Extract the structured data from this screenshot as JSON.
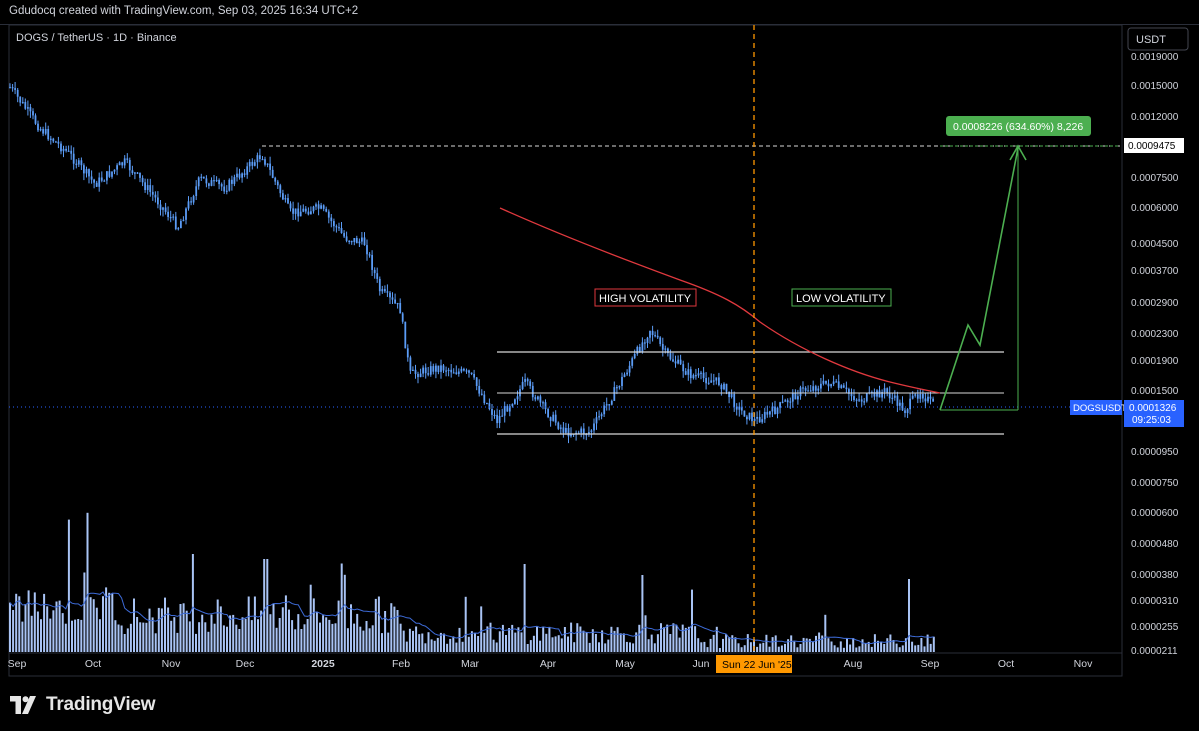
{
  "header": {
    "credit": "Gdudocq created with TradingView.com, Sep 03, 2025 16:34 UTC+2"
  },
  "symbol_line": "DOGS / TetherUS · 1D · Binance",
  "currency_button": "USDT",
  "brand": "TradingView",
  "colors": {
    "background": "#000000",
    "candle": "#5b9cf6",
    "volume": "#a9c4f5",
    "ma_line": "#e0393e",
    "volume_ma": "#3d6bd8",
    "projection": "#4caf50",
    "date_marker": "#ff9800"
  },
  "annotations": {
    "high_volatility": "HIGH VOLATILITY",
    "low_volatility": "LOW VOLATILITY",
    "measure_label": "0.0008226 (634.60%) 8,226",
    "date_marker_label": "Sun 22 Jun '25"
  },
  "price_tags": {
    "target": "0.0009475",
    "symbol": "DOGSUSDT",
    "last_price": "0.0001326",
    "countdown": "09:25:03"
  },
  "chart_data": {
    "type": "candlestick",
    "scale": "log",
    "title": "DOGS / TetherUS · 1D · Binance",
    "y_ticks": [
      "0.0019000",
      "0.0015000",
      "0.0012000",
      "0.0007500",
      "0.0006000",
      "0.0004500",
      "0.0003700",
      "0.0002900",
      "0.0002300",
      "0.0001900",
      "0.0001500",
      "0.0000950",
      "0.0000750",
      "0.0000600",
      "0.0000480",
      "0.0000380",
      "0.0000310",
      "0.0000255",
      "0.0000211"
    ],
    "x_ticks": [
      "Sep",
      "Oct",
      "Nov",
      "Dec",
      "2025",
      "Feb",
      "Mar",
      "Apr",
      "May",
      "Jun",
      "Aug",
      "Sep",
      "Oct",
      "Nov"
    ],
    "series": [
      {
        "x": [
          "2024-09",
          "2024-10",
          "2024-11",
          "2024-12",
          "2025-01",
          "2025-02",
          "2025-03",
          "2025-04",
          "2025-05",
          "2025-06",
          "2025-07",
          "2025-08",
          "2025-09"
        ],
        "close": [
          0.00125,
          0.00072,
          0.00055,
          0.0008,
          0.00052,
          0.0002,
          0.00016,
          0.00013,
          0.00022,
          0.00013,
          0.00016,
          0.00015,
          0.0001326
        ]
      }
    ],
    "range_box": {
      "top": 0.0002,
      "mid": 0.00015,
      "bottom": 0.000115
    },
    "target_price": 0.0009475,
    "measure": {
      "change": 0.0008226,
      "percent": 634.6,
      "ticks": 8226
    }
  }
}
